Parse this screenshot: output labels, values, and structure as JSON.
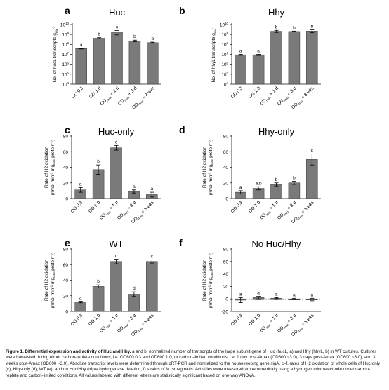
{
  "figure": {
    "caption_title": "Figure 1. Differential expression and activity of Huc and Hhy.",
    "caption_body": "a and b, normalized number of transcripts of the large subunit gene of Huc (hucL, a) and Hhy (hhyL, b) in WT cultures. Cultures were harvested during either carbon-replete conditions, i.e. OD600 0.3 and OD600 1.0, or carbon-limited conditions, i.e. 1 day post-Amax (OD600 ~3.0), 3 days post-Amax (OD600 ~3.0), and 3 weeks post-Amax (OD600 ~3.0). Absolute transcript levels were determined through qRT-PCR and normalized to the housekeeping gene sigA. c–f, rates of H2 oxidation of whole cells of Huc-only (c), Hhy-only (d), WT (e), and no Huc/Hhy (triple hydrogenase deletion, f) strains of M. smegmatis. Activities were measured amperometrically using a hydrogen microelectrode under carbon-replete and carbon-limited conditions. All values labeled with different letters are statistically significant based on one-way ANOVA."
  },
  "colors": {
    "bar": "#7a7a7a",
    "bar_edge": "#333333",
    "axis": "#111111",
    "zero_line": "#888888"
  },
  "chart_data": [
    {
      "panel": "a",
      "title": "Huc",
      "type": "bar",
      "scale": "log",
      "ylabel": "No. of hucL transcripts g_dw^-1",
      "ylim": [
        10000,
        10000000000
      ],
      "yticks": [
        "10^4",
        "10^5",
        "10^6",
        "10^7",
        "10^8",
        "10^9",
        "10^10"
      ],
      "categories": [
        "OD 0.3",
        "OD 1.0",
        "OD_max + 1 d",
        "OD_max + 3 d",
        "OD_max + 3 wks"
      ],
      "values": [
        38000000,
        420000000,
        1700000000,
        230000000,
        150000000
      ],
      "errors": [
        3000000,
        60000000,
        800000000,
        40000000,
        20000000
      ],
      "letters": [
        "a",
        "b",
        "c",
        "b",
        "b"
      ]
    },
    {
      "panel": "b",
      "title": "Hhy",
      "type": "bar",
      "scale": "log",
      "ylabel": "No. of hhyL transcripts g_dw^-1",
      "ylim": [
        10000,
        10000000000
      ],
      "yticks": [
        "10^4",
        "10^5",
        "10^6",
        "10^7",
        "10^8",
        "10^9",
        "10^10"
      ],
      "categories": [
        "OD 0.3",
        "OD 1.0",
        "OD_max + 1 d",
        "OD_max + 3 d",
        "OD_max + 3 wks"
      ],
      "values": [
        9000000,
        9000000,
        2100000000,
        2000000000,
        2200000000
      ],
      "errors": [
        1000000,
        1200000,
        500000000,
        200000000,
        700000000
      ],
      "letters": [
        "a",
        "a",
        "b",
        "b",
        "b"
      ]
    },
    {
      "panel": "c",
      "title": "Huc-only",
      "type": "bar",
      "scale": "linear",
      "ylabel": "Rate of H2 oxidation (nmol min^-1 mg_total protein^-1)",
      "ylim": [
        0,
        80
      ],
      "yticks": [
        "0",
        "20",
        "40",
        "60",
        "80"
      ],
      "categories": [
        "OD 0.3",
        "OD 1.0",
        "OD_max + 1 d",
        "OD_max + 3 d",
        "OD_max + 3 wks"
      ],
      "values": [
        11,
        37,
        65,
        9,
        5
      ],
      "errors": [
        3,
        6,
        3,
        2,
        3
      ],
      "letters": [
        "a",
        "b",
        "c",
        "a",
        "a"
      ]
    },
    {
      "panel": "d",
      "title": "Hhy-only",
      "type": "bar",
      "scale": "linear",
      "ylabel": "Rate of H2 oxidation (nmol min^-1 mg_total protein^-1)",
      "ylim": [
        0,
        80
      ],
      "yticks": [
        "0",
        "20",
        "40",
        "60",
        "80"
      ],
      "categories": [
        "OD 0.3",
        "OD 1.0",
        "OD_max + 1 d",
        "OD_max + 3 d",
        "OD_max + 3 wks"
      ],
      "values": [
        8,
        13,
        18,
        20,
        50
      ],
      "errors": [
        2,
        2,
        2,
        2,
        7
      ],
      "letters": [
        "a",
        "a,b",
        "b",
        "b",
        "c"
      ]
    },
    {
      "panel": "e",
      "title": "WT",
      "type": "bar",
      "scale": "linear",
      "ylabel": "Rate of H2 oxidation (nmol min^-1 mg_total protein^-1)",
      "ylim": [
        0,
        80
      ],
      "yticks": [
        "0",
        "20",
        "40",
        "60",
        "80"
      ],
      "categories": [
        "OD 0.3",
        "OD 1.0",
        "OD_max + 1 d",
        "OD_max + 3 d",
        "OD_max + 3 wks"
      ],
      "values": [
        12,
        32,
        64,
        22,
        64
      ],
      "errors": [
        1,
        2,
        3,
        3,
        2
      ],
      "letters": [
        "a",
        "b",
        "c",
        "d",
        "c"
      ]
    },
    {
      "panel": "f",
      "title": "No Huc/Hhy",
      "type": "bar",
      "scale": "linear",
      "ylabel": "Rate of H2 oxidation (nmol min^-1 mg_total protein^-1)",
      "ylim": [
        -20,
        80
      ],
      "yticks": [
        "-20",
        "0",
        "20",
        "40",
        "60",
        "80"
      ],
      "categories": [
        "OD 0.3",
        "OD 1.0",
        "OD_max + 1 d",
        "OD_max + 3 d",
        "OD_max + 3 wks"
      ],
      "values": [
        -2,
        2,
        1,
        0,
        -1
      ],
      "errors": [
        4,
        2,
        1,
        1,
        2
      ],
      "letters": [
        "a",
        "a",
        "a",
        "a",
        "a"
      ]
    }
  ]
}
